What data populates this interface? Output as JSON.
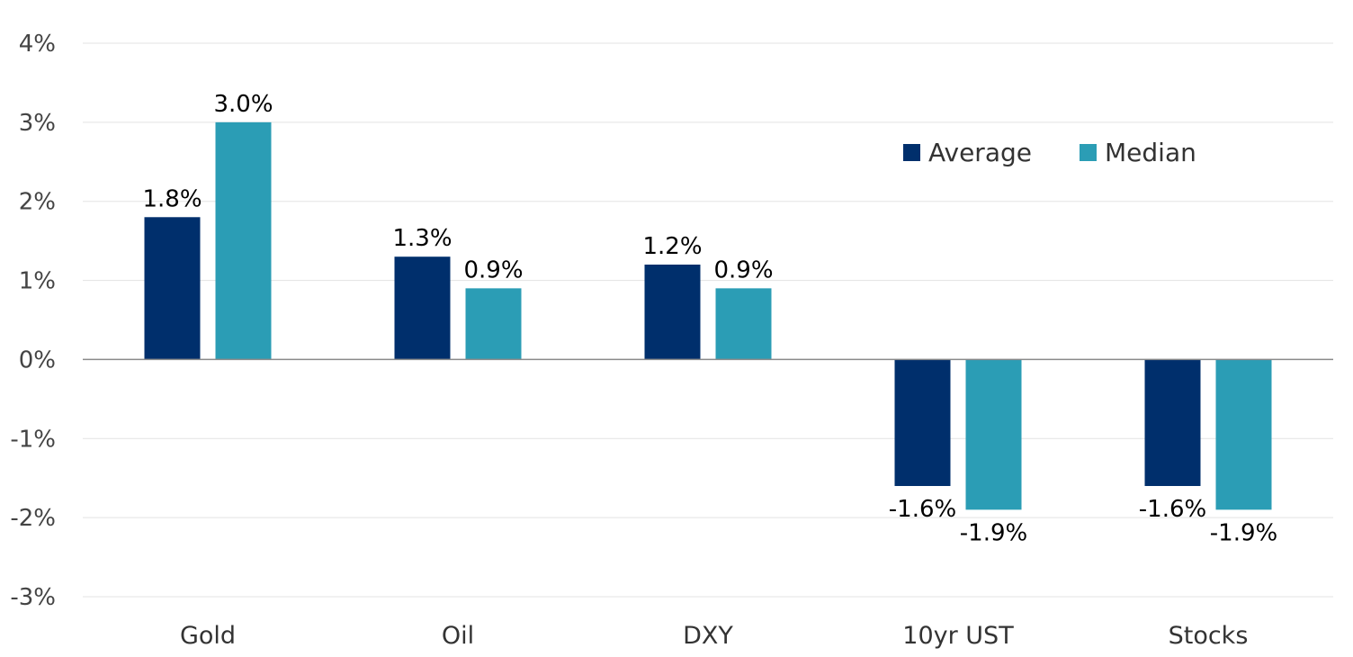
{
  "chart_data": {
    "type": "bar",
    "categories": [
      "Gold",
      "Oil",
      "DXY",
      "10yr UST",
      "Stocks"
    ],
    "series": [
      {
        "name": "Average",
        "color": "#002f6c",
        "values": [
          1.8,
          1.3,
          1.2,
          -1.6,
          -1.6
        ],
        "labels": [
          "1.8%",
          "1.3%",
          "1.2%",
          "-1.6%",
          "-1.6%"
        ]
      },
      {
        "name": "Median",
        "color": "#2b9db5",
        "values": [
          3.0,
          0.9,
          0.9,
          -1.9,
          -1.9
        ],
        "labels": [
          "3.0%",
          "0.9%",
          "0.9%",
          "-1.9%",
          "-1.9%"
        ]
      }
    ],
    "ylim": [
      -3,
      4
    ],
    "yticks": [
      4,
      3,
      2,
      1,
      0,
      -1,
      -2,
      -3
    ],
    "ytick_labels": [
      "4%",
      "3%",
      "2%",
      "1%",
      "0%",
      "-1%",
      "-2%",
      "-3%"
    ],
    "grid": true,
    "legend_position": "top-right"
  }
}
